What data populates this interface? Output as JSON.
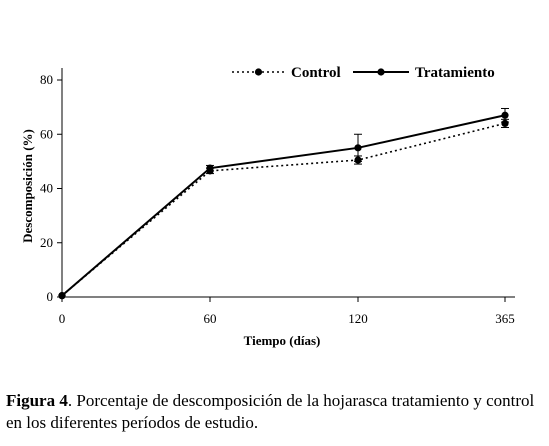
{
  "chart_data": {
    "type": "line",
    "categories": [
      "0",
      "60",
      "120",
      "365"
    ],
    "xlabel": "Tiempo (días)",
    "ylabel": "Descomposición (%)",
    "ylim": [
      0,
      80
    ],
    "yticks": [
      "0",
      "20",
      "40",
      "60",
      "80"
    ],
    "grid": false,
    "legend_position": "top-right",
    "series": [
      {
        "name": "Control",
        "style": "dotted",
        "color": "#000000",
        "values": [
          0.5,
          46.5,
          50.5,
          64
        ],
        "errors": [
          0,
          1,
          1.5,
          1.5
        ]
      },
      {
        "name": "Tratamiento",
        "style": "solid",
        "color": "#000000",
        "values": [
          0.5,
          47.5,
          55,
          67
        ],
        "errors": [
          0,
          1,
          5,
          2.5
        ]
      }
    ]
  },
  "caption": {
    "label": "Figura 4",
    "text": ". Porcentaje de descomposición de la hojarasca tratamiento y control en los diferentes períodos de estudio."
  }
}
